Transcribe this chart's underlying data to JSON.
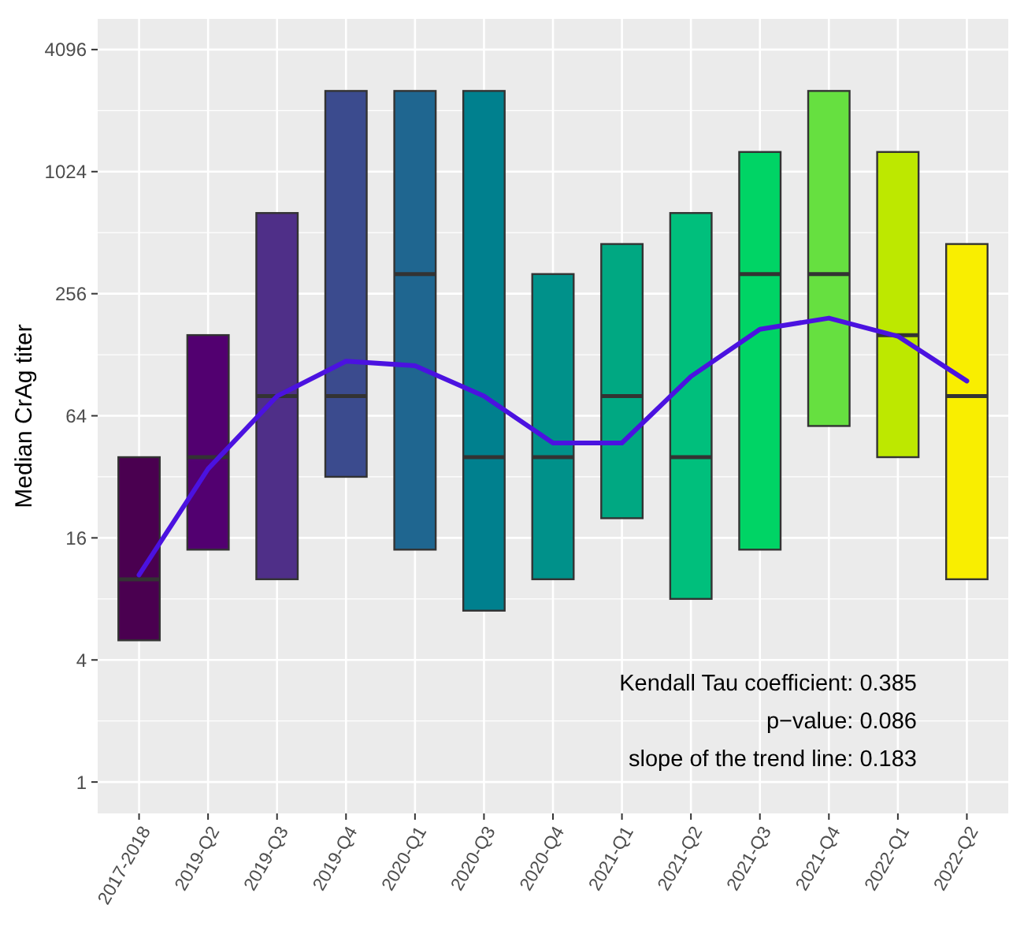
{
  "chart_data": {
    "type": "box",
    "ylabel": "Median CrAg titer",
    "log": true,
    "grid": true,
    "categories": [
      "2017-2018",
      "2019-Q2",
      "2019-Q3",
      "2019-Q4",
      "2020-Q1",
      "2020-Q3",
      "2020-Q4",
      "2021-Q1",
      "2021-Q2",
      "2021-Q3",
      "2021-Q4",
      "2022-Q1",
      "2022-Q2"
    ],
    "colors": [
      "#4a0050",
      "#520070",
      "#4f2f88",
      "#3b4b8e",
      "#1f6690",
      "#00808e",
      "#00918a",
      "#00a882",
      "#00bf7c",
      "#00d465",
      "#66e040",
      "#bde800",
      "#f9ee00"
    ],
    "boxes": [
      {
        "low": 5,
        "q1": 5,
        "median": 10,
        "q3": 40,
        "high": 40
      },
      {
        "low": 14,
        "q1": 14,
        "median": 40,
        "q3": 160,
        "high": 160
      },
      {
        "low": 10,
        "q1": 10,
        "median": 80,
        "q3": 640,
        "high": 640
      },
      {
        "low": 32,
        "q1": 32,
        "median": 80,
        "q3": 2560,
        "high": 2560
      },
      {
        "low": 14,
        "q1": 14,
        "median": 320,
        "q3": 2560,
        "high": 2560
      },
      {
        "low": 7,
        "q1": 7,
        "median": 40,
        "q3": 2560,
        "high": 2560
      },
      {
        "low": 10,
        "q1": 10,
        "median": 40,
        "q3": 320,
        "high": 320
      },
      {
        "low": 20,
        "q1": 20,
        "median": 80,
        "q3": 450,
        "high": 450
      },
      {
        "low": 8,
        "q1": 8,
        "median": 40,
        "q3": 640,
        "high": 640
      },
      {
        "low": 14,
        "q1": 14,
        "median": 320,
        "q3": 1280,
        "high": 1280
      },
      {
        "low": 57,
        "q1": 57,
        "median": 320,
        "q3": 2560,
        "high": 2560
      },
      {
        "low": 40,
        "q1": 40,
        "median": 160,
        "q3": 1280,
        "high": 1280
      },
      {
        "low": 10,
        "q1": 10,
        "median": 80,
        "q3": 450,
        "high": 450
      }
    ],
    "series": [
      {
        "type": "line",
        "color": "#4b12e0",
        "values": [
          10.5,
          35,
          80,
          119,
          113,
          80,
          47,
          47,
          100,
          171,
          194,
          158,
          95
        ]
      }
    ],
    "ylim": [
      0.7,
      5800
    ],
    "yticks": [
      1,
      4,
      16,
      64,
      256,
      1024,
      4096
    ],
    "annotations": [
      "Kendall Tau coefficient: 0.385",
      "p−value: 0.086",
      "slope of the trend line: 0.183"
    ]
  }
}
